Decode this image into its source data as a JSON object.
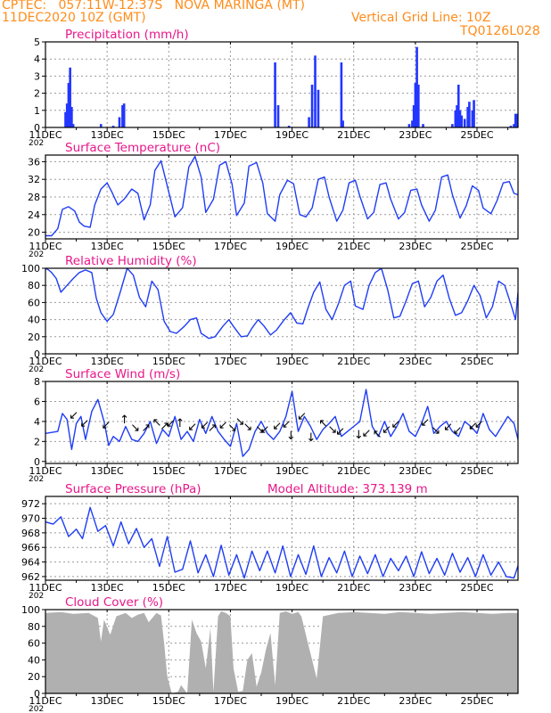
{
  "header": {
    "line1_left": "CPTEC:   057:11W-12:37S   NOVA MARINGA (MT)",
    "line2_left": "11DEC2020 10Z (GMT)",
    "line1_right": "Vertical Grid Line: 10Z",
    "line2_right": "TQ0126L028",
    "color": "#ff8c1a"
  },
  "x_axis": {
    "tick_labels": [
      "11DEC",
      "13DEC",
      "15DEC",
      "17DEC",
      "19DEC",
      "21DEC",
      "23DEC",
      "25DEC"
    ],
    "tick_days": [
      0,
      2,
      4,
      6,
      8,
      10,
      12,
      14
    ],
    "range_days": [
      0,
      15.33
    ],
    "year_fragment": "202"
  },
  "colors": {
    "title": "#e8178a",
    "line": "#1f3df5",
    "bar": "#2236ff",
    "cloud": "#b0b0b0",
    "grid": "#999999",
    "axes": "#000000"
  },
  "chart_data": [
    {
      "id": "precip",
      "type": "bar",
      "title": "Precipitation (mm/h)",
      "ylim": [
        0,
        5
      ],
      "yticks": [
        0,
        1,
        2,
        3,
        4,
        5
      ],
      "grid": true,
      "x_days": [
        0.65,
        0.7,
        0.75,
        0.8,
        0.85,
        0.9,
        1.8,
        2.2,
        2.4,
        2.5,
        2.55,
        7.45,
        7.55,
        7.9,
        8.55,
        8.65,
        8.75,
        8.85,
        9.6,
        9.65,
        11.8,
        11.9,
        11.95,
        12.0,
        12.05,
        12.1,
        12.25,
        13.2,
        13.3,
        13.35,
        13.4,
        13.45,
        13.5,
        13.6,
        13.7,
        13.75,
        13.85,
        13.9,
        15.1,
        15.2,
        15.25,
        15.3
      ],
      "values": [
        0.9,
        1.4,
        2.6,
        3.5,
        1.2,
        0.2,
        0.2,
        0.1,
        0.6,
        1.3,
        1.4,
        3.8,
        1.3,
        0.1,
        0.6,
        2.5,
        4.2,
        2.2,
        3.8,
        0.4,
        0.2,
        0.4,
        1.3,
        2.6,
        4.7,
        2.5,
        0.2,
        0.2,
        1.0,
        1.3,
        2.5,
        1.0,
        0.7,
        0.5,
        1.2,
        1.5,
        1.0,
        1.6,
        0.1,
        0.2,
        0.8,
        0.8
      ]
    },
    {
      "id": "temp",
      "type": "line",
      "title": "Surface Temperature (nC)",
      "ylim": [
        18.5,
        37.5
      ],
      "yticks": [
        20,
        24,
        28,
        32,
        36
      ],
      "grid": true,
      "x": [
        0,
        0.2,
        0.4,
        0.55,
        0.75,
        0.95,
        1.1,
        1.25,
        1.45,
        1.6,
        1.8,
        2.0,
        2.15,
        2.35,
        2.55,
        2.8,
        3.0,
        3.2,
        3.4,
        3.55,
        3.75,
        3.95,
        4.2,
        4.45,
        4.65,
        4.85,
        5.05,
        5.2,
        5.45,
        5.65,
        5.85,
        6.05,
        6.2,
        6.45,
        6.6,
        6.85,
        7.05,
        7.2,
        7.45,
        7.6,
        7.85,
        8.05,
        8.25,
        8.45,
        8.65,
        8.85,
        9.05,
        9.2,
        9.45,
        9.65,
        9.85,
        10.05,
        10.2,
        10.45,
        10.65,
        10.85,
        11.05,
        11.2,
        11.45,
        11.65,
        11.85,
        12.05,
        12.2,
        12.45,
        12.65,
        12.85,
        13.05,
        13.2,
        13.45,
        13.65,
        13.85,
        14.05,
        14.2,
        14.45,
        14.65,
        14.85,
        15.05,
        15.2,
        15.33
      ],
      "y": [
        19.2,
        19.2,
        20.8,
        25.2,
        25.8,
        24.8,
        22.3,
        21.4,
        21.1,
        26.2,
        29.8,
        31.2,
        29.2,
        26.2,
        27.5,
        29.8,
        28.8,
        22.8,
        26.2,
        34.0,
        36.2,
        30.5,
        23.5,
        25.6,
        34.8,
        37.2,
        32.5,
        24.5,
        27.5,
        35.2,
        36.0,
        31.0,
        23.8,
        26.6,
        35.0,
        35.8,
        31.2,
        24.2,
        22.5,
        28.5,
        31.8,
        31.0,
        24.0,
        23.5,
        25.5,
        32.0,
        32.5,
        28.0,
        22.5,
        25.0,
        31.2,
        31.8,
        28.2,
        23.0,
        24.5,
        30.8,
        31.2,
        27.5,
        23.0,
        24.5,
        29.5,
        29.8,
        26.2,
        22.5,
        25.0,
        32.5,
        33.0,
        28.5,
        23.2,
        26.0,
        30.5,
        29.5,
        25.5,
        24.2,
        27.2,
        31.2,
        31.5,
        28.8,
        28.5
      ]
    },
    {
      "id": "rh",
      "type": "line",
      "title": "Relative Humidity (%)",
      "ylim": [
        0,
        100
      ],
      "yticks": [
        0,
        20,
        40,
        60,
        80,
        100
      ],
      "grid": true,
      "x": [
        0,
        0.1,
        0.2,
        0.35,
        0.5,
        0.7,
        0.9,
        1.1,
        1.3,
        1.5,
        1.65,
        1.8,
        2.0,
        2.2,
        2.45,
        2.65,
        2.85,
        3.05,
        3.25,
        3.45,
        3.65,
        3.85,
        4.05,
        4.25,
        4.5,
        4.7,
        4.9,
        5.05,
        5.3,
        5.5,
        5.75,
        5.95,
        6.1,
        6.35,
        6.55,
        6.7,
        6.9,
        7.1,
        7.3,
        7.5,
        7.75,
        7.95,
        8.15,
        8.35,
        8.5,
        8.7,
        8.9,
        9.1,
        9.3,
        9.5,
        9.7,
        9.9,
        10.05,
        10.3,
        10.5,
        10.7,
        10.9,
        11.1,
        11.3,
        11.5,
        11.7,
        11.9,
        12.1,
        12.3,
        12.5,
        12.7,
        12.9,
        13.1,
        13.3,
        13.5,
        13.7,
        13.9,
        14.1,
        14.3,
        14.5,
        14.7,
        14.9,
        15.1,
        15.25,
        15.33
      ],
      "y": [
        100,
        98,
        95,
        88,
        72,
        80,
        88,
        95,
        98,
        95,
        65,
        48,
        38,
        46,
        75,
        100,
        92,
        66,
        55,
        85,
        75,
        38,
        26,
        24,
        32,
        40,
        42,
        24,
        18,
        20,
        32,
        40,
        32,
        20,
        21,
        30,
        40,
        32,
        22,
        28,
        40,
        48,
        36,
        35,
        52,
        72,
        84,
        52,
        40,
        58,
        80,
        85,
        56,
        52,
        80,
        95,
        100,
        75,
        42,
        44,
        62,
        82,
        85,
        55,
        66,
        85,
        92,
        65,
        45,
        48,
        62,
        80,
        68,
        42,
        55,
        85,
        80,
        58,
        40,
        72
      ],
      "y_outline": [
        100,
        98,
        95,
        88,
        72,
        80,
        88,
        95,
        98,
        95,
        65,
        48,
        38,
        46,
        75,
        100,
        92,
        66,
        55,
        85,
        75,
        38,
        26,
        24,
        32,
        40,
        42,
        24,
        18,
        20,
        32,
        40,
        32,
        20,
        21,
        30,
        40,
        32,
        22,
        28,
        40,
        48,
        36,
        35,
        52,
        72,
        84,
        52,
        40,
        58,
        80,
        85,
        56,
        52,
        80,
        95,
        100,
        75,
        42,
        44,
        62,
        82,
        85,
        55,
        66,
        85,
        92,
        65,
        45,
        48,
        62,
        80,
        68,
        42,
        55,
        85,
        80,
        58,
        40,
        72
      ]
    },
    {
      "id": "wind",
      "type": "line",
      "title": "Surface Wind (m/s)",
      "ylim": [
        -0.2,
        8
      ],
      "yticks": [
        0,
        2,
        4,
        6,
        8
      ],
      "grid": true,
      "x": [
        0,
        0.2,
        0.4,
        0.55,
        0.7,
        0.85,
        1.0,
        1.15,
        1.3,
        1.5,
        1.7,
        1.9,
        2.05,
        2.2,
        2.4,
        2.6,
        2.8,
        3.0,
        3.2,
        3.4,
        3.6,
        3.8,
        4.0,
        4.2,
        4.4,
        4.6,
        4.8,
        5.0,
        5.2,
        5.4,
        5.6,
        5.8,
        6.0,
        6.2,
        6.4,
        6.6,
        6.8,
        7.0,
        7.2,
        7.4,
        7.6,
        7.8,
        8.0,
        8.2,
        8.4,
        8.6,
        8.8,
        9.0,
        9.2,
        9.4,
        9.6,
        9.8,
        10.0,
        10.2,
        10.4,
        10.6,
        10.8,
        11.0,
        11.2,
        11.4,
        11.6,
        11.8,
        12.0,
        12.2,
        12.4,
        12.6,
        12.8,
        13.0,
        13.2,
        13.4,
        13.6,
        13.8,
        14.0,
        14.2,
        14.4,
        14.6,
        14.8,
        15.0,
        15.2,
        15.33
      ],
      "y": [
        2.8,
        2.9,
        3.0,
        4.8,
        4.2,
        1.2,
        3.8,
        4.5,
        2.2,
        5.0,
        6.2,
        4.0,
        1.6,
        2.5,
        2.0,
        3.5,
        2.2,
        2.0,
        2.8,
        4.0,
        1.8,
        3.2,
        2.5,
        4.5,
        2.2,
        3.0,
        2.0,
        4.2,
        2.8,
        4.5,
        3.0,
        2.2,
        1.5,
        3.8,
        0.5,
        1.2,
        3.0,
        4.0,
        2.8,
        2.2,
        3.0,
        4.5,
        7.0,
        3.0,
        4.5,
        3.5,
        2.2,
        3.2,
        3.8,
        4.5,
        2.5,
        3.0,
        3.5,
        4.0,
        7.2,
        3.5,
        2.5,
        4.0,
        2.5,
        3.5,
        4.8,
        3.0,
        2.5,
        3.8,
        5.5,
        2.8,
        3.5,
        4.0,
        3.0,
        2.5,
        4.0,
        3.5,
        2.8,
        4.8,
        3.2,
        2.5,
        3.5,
        4.5,
        3.8,
        2.2
      ]
    },
    {
      "id": "pres",
      "type": "line",
      "title": "Surface Pressure (hPa)",
      "annotation": "Model Altitude: 373.139  m",
      "ylim": [
        961.5,
        973
      ],
      "yticks": [
        962,
        964,
        966,
        968,
        970,
        972
      ],
      "grid": true,
      "x": [
        0,
        0.25,
        0.5,
        0.75,
        1.0,
        1.2,
        1.45,
        1.7,
        1.95,
        2.2,
        2.45,
        2.7,
        2.95,
        3.2,
        3.45,
        3.7,
        3.95,
        4.2,
        4.45,
        4.7,
        4.95,
        5.2,
        5.45,
        5.7,
        5.95,
        6.2,
        6.45,
        6.7,
        6.95,
        7.2,
        7.45,
        7.7,
        7.95,
        8.2,
        8.45,
        8.7,
        8.95,
        9.2,
        9.45,
        9.7,
        9.95,
        10.2,
        10.45,
        10.7,
        10.95,
        11.2,
        11.45,
        11.7,
        11.95,
        12.2,
        12.45,
        12.7,
        12.95,
        13.2,
        13.45,
        13.7,
        13.95,
        14.2,
        14.45,
        14.7,
        14.95,
        15.2,
        15.33
      ],
      "y": [
        969.5,
        969.2,
        970.2,
        967.5,
        968.5,
        967.2,
        971.5,
        968.2,
        969.0,
        966.2,
        969.5,
        966.5,
        968.6,
        966.0,
        967.2,
        963.4,
        967.5,
        962.6,
        963.0,
        966.9,
        962.5,
        965.0,
        962.0,
        966.3,
        962.2,
        965.0,
        961.8,
        965.5,
        962.8,
        965.5,
        962.5,
        966.2,
        962.0,
        965.0,
        962.3,
        966.2,
        962.0,
        964.6,
        962.5,
        965.5,
        962.0,
        964.8,
        962.4,
        965.0,
        962.0,
        964.5,
        962.8,
        964.8,
        962.0,
        965.4,
        962.4,
        964.5,
        962.2,
        965.2,
        962.6,
        964.6,
        962.0,
        965.0,
        962.2,
        964.0,
        962.0,
        961.8,
        963.5
      ]
    },
    {
      "id": "cloud",
      "type": "area",
      "title": "Cloud Cover (%)",
      "ylim": [
        0,
        100
      ],
      "yticks": [
        0,
        20,
        40,
        60,
        80,
        100
      ],
      "grid": true,
      "x": [
        0,
        0.5,
        0.9,
        1.4,
        1.7,
        1.8,
        1.9,
        2.1,
        2.3,
        2.6,
        2.8,
        3.0,
        3.2,
        3.35,
        3.6,
        3.75,
        3.85,
        3.95,
        4.1,
        4.3,
        4.4,
        4.6,
        4.75,
        4.9,
        5.05,
        5.2,
        5.35,
        5.45,
        5.6,
        5.7,
        5.85,
        6.0,
        6.1,
        6.25,
        6.4,
        6.55,
        6.7,
        6.85,
        7.0,
        7.15,
        7.3,
        7.45,
        7.6,
        7.8,
        8.0,
        8.2,
        8.3,
        8.5,
        8.8,
        9.0,
        9.5,
        10.0,
        10.5,
        11.0,
        11.5,
        12.0,
        12.5,
        13.0,
        13.5,
        14.0,
        14.5,
        15.0,
        15.33
      ],
      "y": [
        96,
        97,
        95,
        96,
        90,
        62,
        88,
        70,
        92,
        96,
        90,
        94,
        96,
        85,
        96,
        93,
        60,
        20,
        0,
        2,
        10,
        0,
        88,
        72,
        62,
        30,
        78,
        2,
        92,
        98,
        96,
        92,
        30,
        2,
        3,
        40,
        48,
        8,
        25,
        52,
        72,
        10,
        96,
        98,
        95,
        97,
        92,
        62,
        18,
        92,
        96,
        97,
        96,
        95,
        97,
        96,
        95,
        96,
        97,
        96,
        95,
        96,
        96
      ]
    }
  ]
}
